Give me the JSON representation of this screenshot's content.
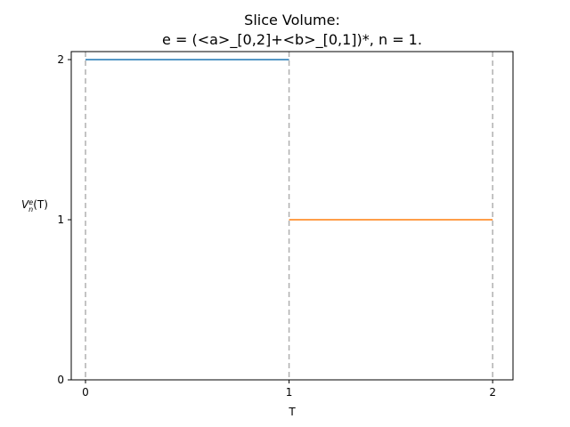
{
  "chart_data": {
    "type": "line",
    "title": "Slice Volume:",
    "subtitle": "e = (<a>_[0,2]+<b>_[0,1])*, n = 1.",
    "xlabel": "T",
    "ylabel": "V",
    "ylabel_sup": "e",
    "ylabel_sub": "n",
    "ylabel_arg": "(T)",
    "xlim": [
      -0.07,
      2.1
    ],
    "ylim": [
      0,
      2.05
    ],
    "xticks": [
      0,
      1,
      2
    ],
    "yticks": [
      0,
      1,
      2
    ],
    "xtick_labels": [
      "0",
      "1",
      "2"
    ],
    "ytick_labels": [
      "0",
      "1",
      "2"
    ],
    "vlines": [
      0,
      1,
      2
    ],
    "vline_color": "#b0b0b0",
    "series": [
      {
        "x": [
          0,
          1
        ],
        "values": [
          2,
          2
        ],
        "color": "#1f77b4"
      },
      {
        "x": [
          1,
          2
        ],
        "values": [
          1,
          1
        ],
        "color": "#ff7f0e"
      }
    ],
    "grid": false
  }
}
